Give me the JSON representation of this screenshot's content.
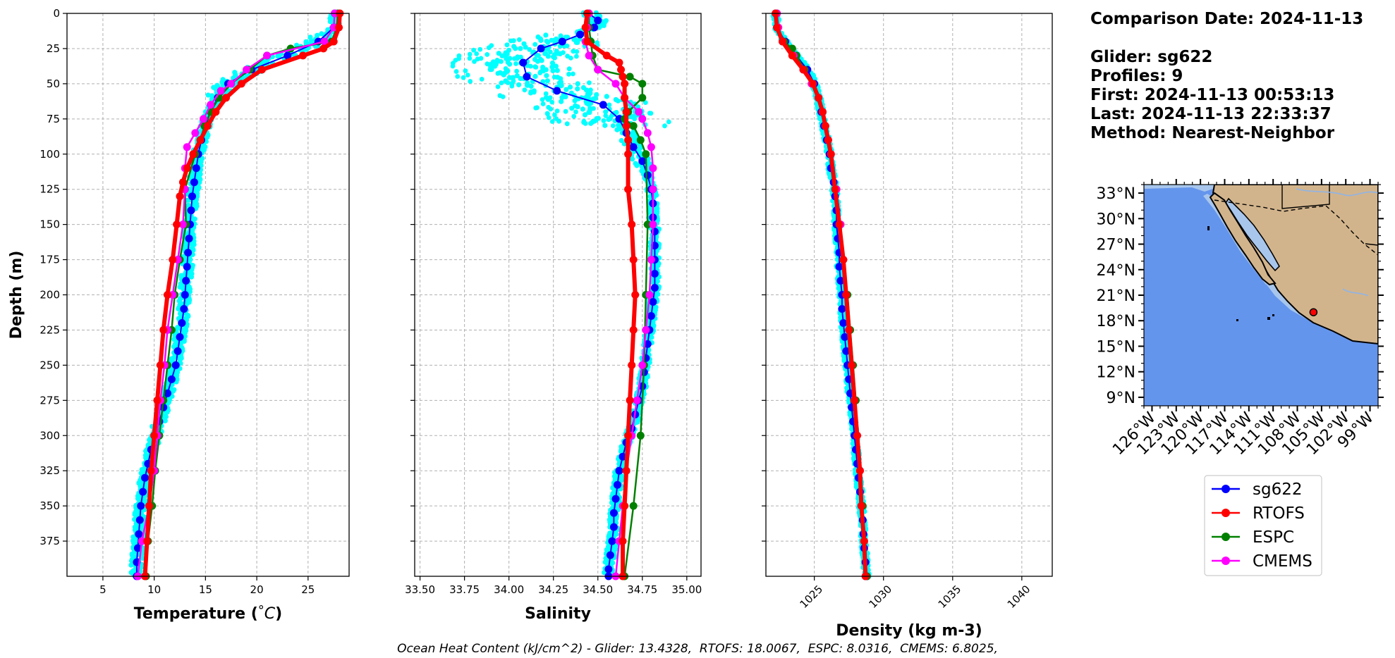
{
  "info": {
    "comparison": "Comparison Date: 2024-11-13",
    "glider": "Glider: sg622",
    "profiles": "Profiles: 9",
    "first": "First: 2024-11-13 00:53:13",
    "last": "Last: 2024-11-13 22:33:37",
    "method": "Method: Nearest-Neighbor"
  },
  "footer": {
    "prefix": "Ocean Heat Content (kJ/cm^2) - ",
    "glider": "Glider: 13.4328, ",
    "rtofs": " RTOFS: 18.0067, ",
    "espc": " ESPC: 8.0316, ",
    "cmems": " CMEMS: 6.8025,"
  },
  "colors": {
    "sg622": "#0000ff",
    "glider_raw": "#00ffff",
    "rtofs": "#ff0000",
    "espc": "#008000",
    "cmems": "#ff00ff",
    "ocean": "#6495ed",
    "shelf": "#a8c6ec",
    "land": "#d2b48c",
    "grid": "#b0b0b0"
  },
  "chart_data": [
    {
      "type": "line",
      "ylabel": "Depth (m)",
      "xlabel": "Temperature (°C)",
      "ylim": [
        400,
        0
      ],
      "xlim": [
        1.5,
        29
      ],
      "xticks": [
        "5",
        "10",
        "15",
        "20",
        "25"
      ],
      "yticks": [
        "0",
        "25",
        "50",
        "75",
        "100",
        "125",
        "150",
        "175",
        "200",
        "225",
        "250",
        "275",
        "300",
        "325",
        "350",
        "375"
      ],
      "grid": true,
      "series": [
        {
          "name": "sg622",
          "depth": [
            0,
            10,
            20,
            30,
            40,
            50,
            60,
            70,
            80,
            90,
            100,
            110,
            120,
            130,
            140,
            150,
            160,
            170,
            180,
            190,
            200,
            210,
            220,
            230,
            240,
            250,
            260,
            270,
            280,
            290,
            300,
            310,
            320,
            330,
            340,
            350,
            360,
            370,
            380,
            390,
            400
          ],
          "values": [
            27.6,
            27.5,
            26.0,
            23.0,
            19.5,
            17.2,
            16.2,
            15.5,
            15.0,
            14.6,
            14.3,
            14.1,
            13.9,
            13.7,
            13.6,
            13.5,
            13.4,
            13.3,
            13.2,
            13.1,
            13.0,
            12.9,
            12.7,
            12.5,
            12.3,
            12.1,
            11.7,
            11.3,
            10.9,
            10.5,
            10.1,
            9.7,
            9.4,
            9.1,
            8.9,
            8.7,
            8.6,
            8.5,
            8.4,
            8.3,
            8.3
          ]
        },
        {
          "name": "RTOFS",
          "depth": [
            0,
            10,
            20,
            25,
            30,
            40,
            50,
            60,
            70,
            80,
            90,
            100,
            110,
            120,
            130,
            150,
            175,
            200,
            225,
            250,
            275,
            300,
            325,
            350,
            375,
            400
          ],
          "values": [
            28.1,
            28.0,
            27.5,
            26.5,
            24.5,
            20.5,
            18.5,
            17.0,
            16.0,
            15.2,
            14.5,
            13.8,
            13.2,
            12.8,
            12.5,
            12.2,
            11.8,
            11.3,
            10.9,
            10.6,
            10.3,
            10.0,
            9.7,
            9.5,
            9.3,
            9.1
          ]
        },
        {
          "name": "ESPC",
          "depth": [
            0,
            10,
            20,
            25,
            30,
            40,
            50,
            60,
            70,
            80,
            90,
            100,
            125,
            150,
            175,
            200,
            225,
            250,
            275,
            300,
            325,
            350,
            375,
            400
          ],
          "values": [
            27.9,
            27.8,
            27.3,
            23.3,
            21.0,
            19.3,
            17.5,
            16.3,
            15.5,
            14.9,
            14.5,
            14.0,
            13.0,
            13.1,
            12.5,
            12.0,
            11.7,
            11.3,
            10.9,
            10.5,
            10.1,
            9.8,
            9.4,
            9.2
          ]
        },
        {
          "name": "CMEMS",
          "depth": [
            0,
            10,
            20,
            30,
            40,
            50,
            55,
            65,
            75,
            85,
            95,
            110,
            125,
            150,
            175,
            200,
            225,
            250,
            275,
            300,
            325,
            350,
            375,
            400
          ],
          "values": [
            27.6,
            27.5,
            26.6,
            21.0,
            19.0,
            17.5,
            16.5,
            15.5,
            14.8,
            14.0,
            13.2,
            13.0,
            13.0,
            12.8,
            12.3,
            11.8,
            11.3,
            11.0,
            10.6,
            10.3,
            10.0,
            9.5,
            8.8,
            8.4
          ]
        }
      ]
    },
    {
      "type": "line",
      "xlabel": "Salinity",
      "ylim": [
        400,
        0
      ],
      "xlim": [
        33.47,
        35.08
      ],
      "xticks": [
        "33.50",
        "33.75",
        "34.00",
        "34.25",
        "34.50",
        "34.75",
        "35.00"
      ],
      "grid": true,
      "series": [
        {
          "name": "sg622",
          "depth": [
            0,
            5,
            10,
            15,
            20,
            25,
            35,
            45,
            55,
            65,
            75,
            85,
            95,
            105,
            115,
            125,
            135,
            145,
            155,
            165,
            175,
            185,
            195,
            205,
            215,
            225,
            235,
            245,
            255,
            265,
            275,
            285,
            295,
            305,
            315,
            325,
            335,
            345,
            355,
            365,
            375,
            385,
            395,
            400
          ],
          "values": [
            34.45,
            34.5,
            34.48,
            34.4,
            34.3,
            34.18,
            34.08,
            34.1,
            34.27,
            34.53,
            34.62,
            34.66,
            34.7,
            34.75,
            34.78,
            34.8,
            34.81,
            34.81,
            34.82,
            34.82,
            34.82,
            34.82,
            34.82,
            34.81,
            34.8,
            34.79,
            34.78,
            34.77,
            34.76,
            34.75,
            34.73,
            34.71,
            34.69,
            34.66,
            34.64,
            34.62,
            34.61,
            34.6,
            34.59,
            34.59,
            34.58,
            34.57,
            34.56,
            34.56
          ]
        },
        {
          "name": "RTOFS",
          "depth": [
            0,
            10,
            20,
            30,
            35,
            40,
            45,
            50,
            60,
            70,
            80,
            90,
            100,
            125,
            150,
            175,
            200,
            225,
            250,
            275,
            300,
            325,
            350,
            375,
            400
          ],
          "values": [
            34.44,
            34.43,
            34.44,
            34.55,
            34.62,
            34.63,
            34.64,
            34.65,
            34.65,
            34.66,
            34.66,
            34.67,
            34.67,
            34.67,
            34.69,
            34.7,
            34.71,
            34.7,
            34.69,
            34.68,
            34.67,
            34.66,
            34.65,
            34.64,
            34.64
          ]
        },
        {
          "name": "ESPC",
          "depth": [
            0,
            10,
            20,
            30,
            40,
            45,
            50,
            60,
            70,
            75,
            80,
            90,
            100,
            150,
            200,
            250,
            300,
            350,
            400
          ],
          "values": [
            34.45,
            34.45,
            34.46,
            34.47,
            34.5,
            34.68,
            34.75,
            34.75,
            34.67,
            34.65,
            34.7,
            34.74,
            34.77,
            34.78,
            34.77,
            34.76,
            34.74,
            34.7,
            34.65
          ]
        },
        {
          "name": "CMEMS",
          "depth": [
            0,
            10,
            20,
            30,
            40,
            50,
            60,
            70,
            75,
            85,
            95,
            110,
            125,
            150,
            175,
            200,
            225,
            250,
            275,
            300,
            325,
            350,
            375,
            400
          ],
          "values": [
            34.45,
            34.44,
            34.43,
            34.45,
            34.5,
            34.6,
            34.65,
            34.73,
            34.75,
            34.78,
            34.8,
            34.81,
            34.81,
            34.81,
            34.8,
            34.79,
            34.77,
            34.75,
            34.72,
            34.69,
            34.66,
            34.64,
            34.62,
            34.6
          ]
        }
      ]
    },
    {
      "type": "line",
      "xlabel": "Density (kg m-3)",
      "ylim": [
        400,
        0
      ],
      "xlim": [
        1021.5,
        1042.2
      ],
      "xticks": [
        "1025",
        "1030",
        "1035",
        "1040"
      ],
      "grid": true,
      "series": [
        {
          "name": "sg622",
          "depth": [
            0,
            10,
            20,
            30,
            40,
            50,
            60,
            70,
            80,
            90,
            100,
            110,
            120,
            130,
            140,
            150,
            160,
            170,
            180,
            190,
            200,
            210,
            220,
            230,
            240,
            250,
            260,
            270,
            280,
            290,
            300,
            310,
            320,
            330,
            340,
            350,
            360,
            370,
            380,
            390,
            400
          ],
          "values": [
            1022.2,
            1022.3,
            1022.9,
            1023.7,
            1024.5,
            1025.0,
            1025.3,
            1025.5,
            1025.7,
            1025.9,
            1026.1,
            1026.2,
            1026.4,
            1026.5,
            1026.6,
            1026.6,
            1026.7,
            1026.8,
            1026.8,
            1026.9,
            1027.0,
            1027.0,
            1027.1,
            1027.2,
            1027.3,
            1027.4,
            1027.5,
            1027.6,
            1027.7,
            1027.8,
            1027.9,
            1028.0,
            1028.1,
            1028.2,
            1028.3,
            1028.4,
            1028.5,
            1028.55,
            1028.6,
            1028.7,
            1028.8
          ]
        },
        {
          "name": "RTOFS",
          "depth": [
            0,
            10,
            20,
            30,
            40,
            50,
            60,
            70,
            80,
            90,
            100,
            125,
            150,
            175,
            200,
            225,
            250,
            275,
            300,
            325,
            350,
            375,
            400
          ],
          "values": [
            1022.2,
            1022.3,
            1022.7,
            1023.4,
            1024.2,
            1024.9,
            1025.3,
            1025.6,
            1025.8,
            1026.0,
            1026.2,
            1026.5,
            1026.8,
            1027.1,
            1027.3,
            1027.5,
            1027.7,
            1027.9,
            1028.1,
            1028.3,
            1028.4,
            1028.6,
            1028.7
          ]
        },
        {
          "name": "ESPC",
          "depth": [
            0,
            10,
            20,
            25,
            30,
            40,
            50,
            60,
            70,
            80,
            90,
            100,
            125,
            150,
            175,
            200,
            225,
            250,
            275,
            300,
            325,
            350,
            375,
            400
          ],
          "values": [
            1022.3,
            1022.3,
            1022.8,
            1023.4,
            1023.7,
            1024.3,
            1024.9,
            1025.3,
            1025.6,
            1025.8,
            1026.0,
            1026.2,
            1026.6,
            1026.9,
            1027.1,
            1027.4,
            1027.6,
            1027.8,
            1028.0,
            1028.1,
            1028.3,
            1028.5,
            1028.6,
            1028.8
          ]
        },
        {
          "name": "CMEMS",
          "depth": [
            0,
            10,
            20,
            30,
            40,
            50,
            60,
            70,
            80,
            90,
            100,
            125,
            150,
            175,
            200,
            225,
            250,
            275,
            300,
            325,
            350,
            375,
            400
          ],
          "values": [
            1022.3,
            1022.4,
            1022.7,
            1023.5,
            1024.2,
            1024.8,
            1025.3,
            1025.6,
            1025.8,
            1026.0,
            1026.2,
            1026.6,
            1026.9,
            1027.1,
            1027.3,
            1027.5,
            1027.7,
            1027.9,
            1028.1,
            1028.3,
            1028.4,
            1028.6,
            1028.7
          ]
        }
      ]
    },
    {
      "type": "map",
      "lat_ticks": [
        "33°N",
        "30°N",
        "27°N",
        "24°N",
        "21°N",
        "18°N",
        "15°N",
        "12°N",
        "9°N"
      ],
      "lon_ticks": [
        "126°W",
        "123°W",
        "120°W",
        "117°W",
        "114°W",
        "111°W",
        "108°W",
        "105°W",
        "102°W",
        "99°W"
      ],
      "lat_range": [
        8,
        34
      ],
      "lon_range": [
        -127,
        -98
      ],
      "glider_location": {
        "lat": 19.0,
        "lon": -106.0
      }
    }
  ],
  "legend": {
    "entries": [
      {
        "label": "sg622",
        "color_key": "sg622"
      },
      {
        "label": "RTOFS",
        "color_key": "rtofs"
      },
      {
        "label": "ESPC",
        "color_key": "espc"
      },
      {
        "label": "CMEMS",
        "color_key": "cmems"
      }
    ]
  }
}
